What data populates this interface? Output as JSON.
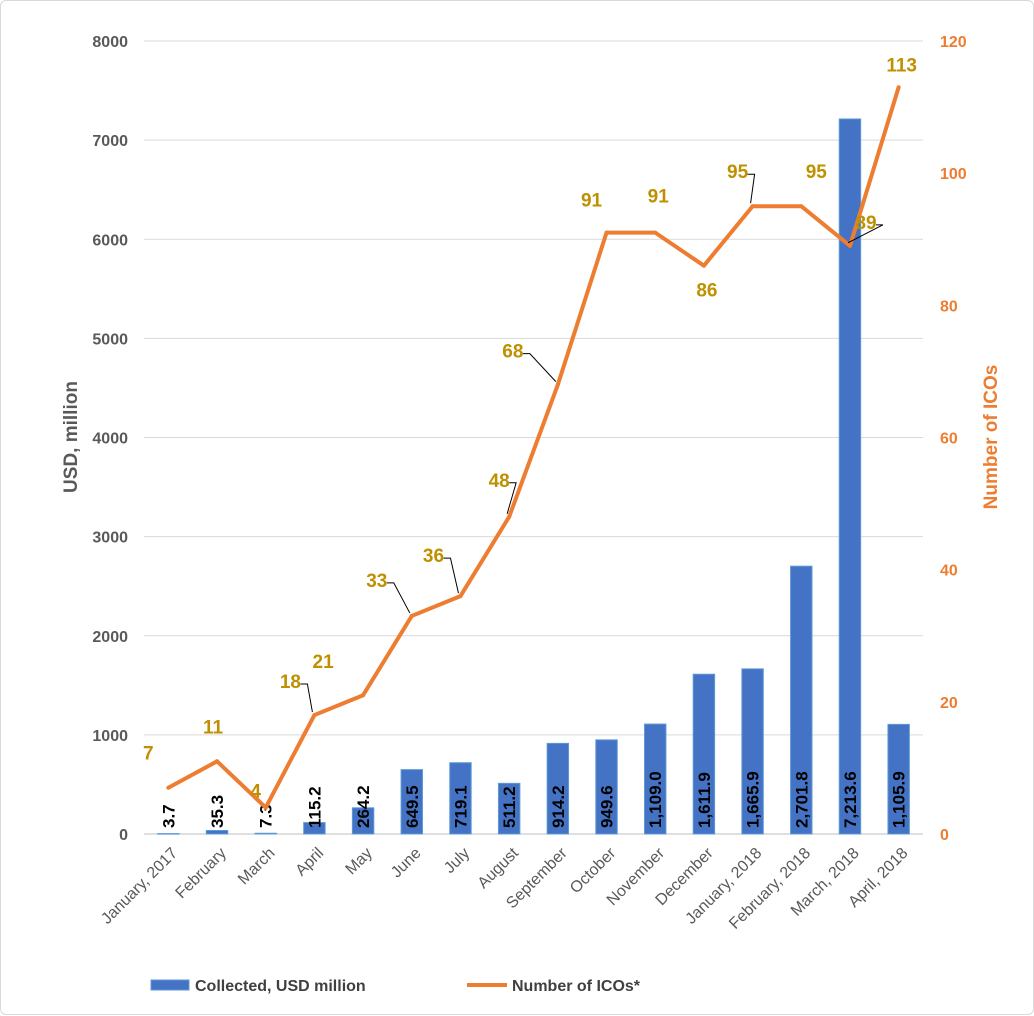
{
  "chart_data": {
    "type": "bar",
    "categories": [
      "January, 2017",
      "February",
      "March",
      "April",
      "May",
      "June",
      "July",
      "August",
      "September",
      "October",
      "November",
      "December",
      "January, 2018",
      "February, 2018",
      "March, 2018",
      "April, 2018"
    ],
    "series": [
      {
        "name": "Collected, USD million",
        "type": "bar",
        "axis": "left",
        "color": "#4472c4",
        "values": [
          3.7,
          35.3,
          7.3,
          115.2,
          264.2,
          649.5,
          719.1,
          511.2,
          914.2,
          949.6,
          1109.0,
          1611.9,
          1665.9,
          2701.8,
          7213.6,
          1105.9
        ],
        "labels": [
          "3.7",
          "35.3",
          "7.3",
          "115.2",
          "264.2",
          "649.5",
          "719.1",
          "511.2",
          "914.2",
          "949.6",
          "1,109.0",
          "1,611.9",
          "1,665.9",
          "2,701.8",
          "7,213.6",
          "1,105.9"
        ]
      },
      {
        "name": "Number of ICOs*",
        "type": "line",
        "axis": "right",
        "color": "#ed7d31",
        "values": [
          7,
          11,
          4,
          18,
          21,
          33,
          36,
          48,
          68,
          91,
          91,
          86,
          95,
          95,
          89,
          113
        ]
      }
    ],
    "ylabel": "USD, million",
    "y2label": "Number of ICOs",
    "ylim": [
      0,
      8000
    ],
    "y2lim": [
      0,
      120
    ],
    "yticks": [
      "0",
      "1000",
      "2000",
      "3000",
      "4000",
      "5000",
      "6000",
      "7000",
      "8000"
    ],
    "y2ticks": [
      "0",
      "20",
      "40",
      "60",
      "80",
      "100",
      "120"
    ],
    "grid": true,
    "legend": "bottom",
    "label_color": "#bf9000"
  }
}
